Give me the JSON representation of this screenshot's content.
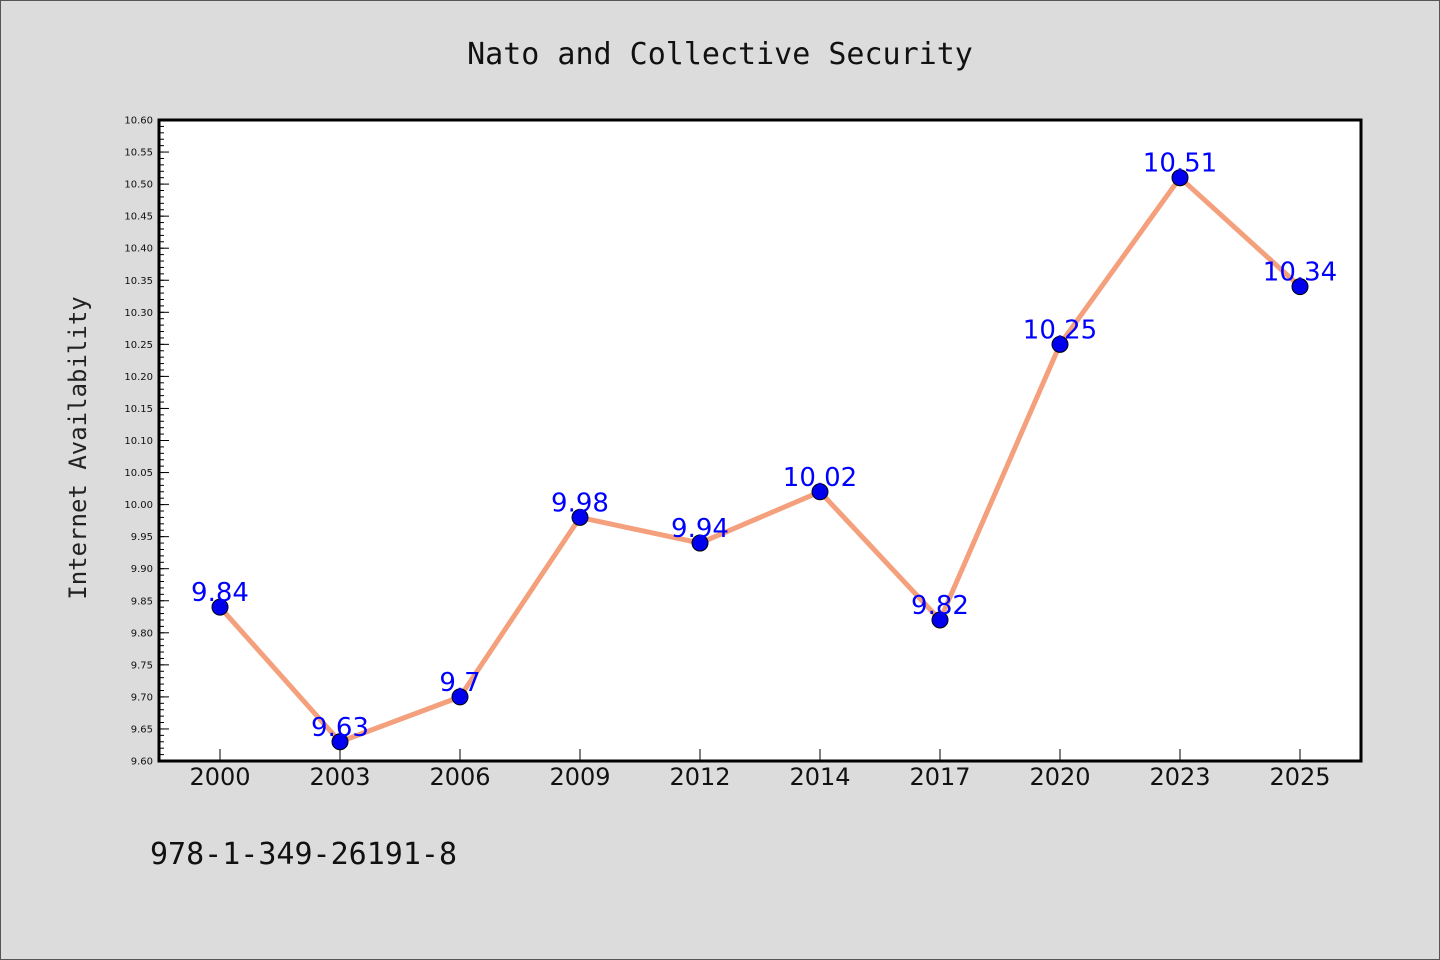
{
  "chart_data": {
    "type": "line",
    "title": "Nato and Collective Security",
    "xlabel": "",
    "ylabel": "Internet Availability",
    "categories": [
      "2000",
      "2003",
      "2006",
      "2009",
      "2012",
      "2014",
      "2017",
      "2020",
      "2023",
      "2025"
    ],
    "series": [
      {
        "values": [
          9.84,
          9.63,
          9.7,
          9.98,
          9.94,
          10.02,
          9.82,
          10.25,
          10.51,
          10.34
        ],
        "data_labels": [
          "9.84",
          "9.63",
          "9.7",
          "9.98",
          "9.94",
          "10.02",
          "9.82",
          "10.25",
          "10.51",
          "10.34"
        ],
        "line_color": "#f4a07c",
        "marker_color": "#0000ee"
      }
    ],
    "ylim": [
      9.6,
      10.6
    ],
    "yticks": [
      "9.60",
      "9.65",
      "9.70",
      "9.75",
      "9.80",
      "9.85",
      "9.90",
      "9.95",
      "10.00",
      "10.05",
      "10.10",
      "10.15",
      "10.20",
      "10.25",
      "10.30",
      "10.35",
      "10.40",
      "10.45",
      "10.50",
      "10.55",
      "10.60"
    ],
    "grid": false,
    "legend": "none",
    "annotation": "978-1-349-26191-8"
  }
}
